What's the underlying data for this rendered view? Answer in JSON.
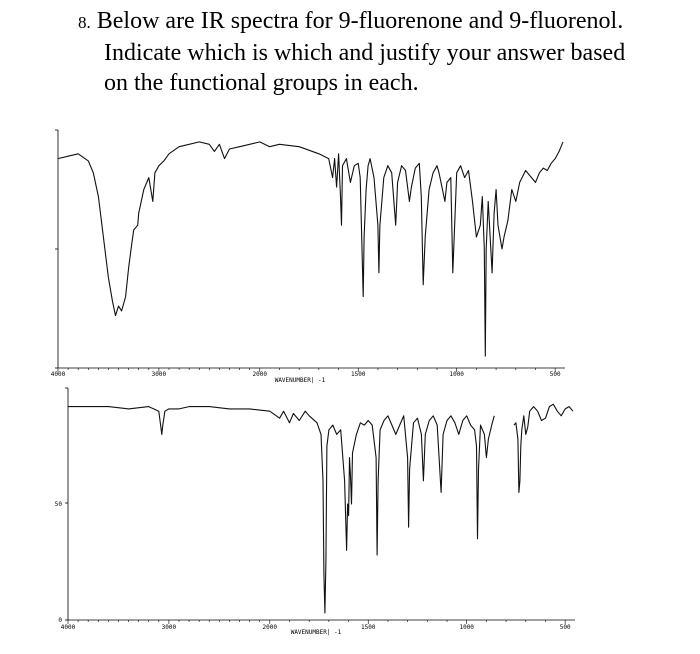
{
  "question": {
    "number": "8.",
    "line1": "Below are IR spectra for 9-fluorenone and 9-fluorenol.",
    "line2": "Indicate which is which and justify your answer based",
    "line3": "on the functional groups in each."
  },
  "chart_data": [
    {
      "type": "line",
      "title": "",
      "xlabel": "WAVENUMBER| -1",
      "ylabel": "",
      "xlim": [
        4000,
        450
      ],
      "ylim": [
        0,
        100
      ],
      "x_reversed": true,
      "xticks": [
        "4000",
        "3000",
        "2000",
        "1500",
        "1000",
        "500"
      ],
      "yticks": [],
      "series": [
        {
          "points": [
            [
              4000,
              88
            ],
            [
              3900,
              89
            ],
            [
              3800,
              90
            ],
            [
              3700,
              87
            ],
            [
              3650,
              82
            ],
            [
              3600,
              72
            ],
            [
              3550,
              55
            ],
            [
              3500,
              38
            ],
            [
              3460,
              28
            ],
            [
              3430,
              22
            ],
            [
              3400,
              26
            ],
            [
              3370,
              24
            ],
            [
              3330,
              30
            ],
            [
              3300,
              42
            ],
            [
              3270,
              52
            ],
            [
              3250,
              58
            ],
            [
              3210,
              60
            ],
            [
              3200,
              65
            ],
            [
              3150,
              75
            ],
            [
              3100,
              80
            ],
            [
              3060,
              70
            ],
            [
              3040,
              82
            ],
            [
              3000,
              85
            ],
            [
              2950,
              87
            ],
            [
              2900,
              90
            ],
            [
              2800,
              93
            ],
            [
              2700,
              94
            ],
            [
              2600,
              95
            ],
            [
              2500,
              94
            ],
            [
              2450,
              91
            ],
            [
              2400,
              94
            ],
            [
              2350,
              88
            ],
            [
              2300,
              92
            ],
            [
              2200,
              93
            ],
            [
              2100,
              94
            ],
            [
              2000,
              95
            ],
            [
              1950,
              93
            ],
            [
              1900,
              94
            ],
            [
              1800,
              93
            ],
            [
              1700,
              90
            ],
            [
              1650,
              88
            ],
            [
              1630,
              80
            ],
            [
              1620,
              88
            ],
            [
              1610,
              76
            ],
            [
              1600,
              90
            ],
            [
              1590,
              72
            ],
            [
              1585,
              60
            ],
            [
              1580,
              85
            ],
            [
              1560,
              88
            ],
            [
              1540,
              78
            ],
            [
              1520,
              85
            ],
            [
              1500,
              86
            ],
            [
              1490,
              80
            ],
            [
              1475,
              30
            ],
            [
              1470,
              55
            ],
            [
              1460,
              75
            ],
            [
              1450,
              85
            ],
            [
              1440,
              88
            ],
            [
              1420,
              80
            ],
            [
              1400,
              60
            ],
            [
              1395,
              40
            ],
            [
              1390,
              60
            ],
            [
              1370,
              80
            ],
            [
              1350,
              85
            ],
            [
              1330,
              82
            ],
            [
              1310,
              60
            ],
            [
              1300,
              78
            ],
            [
              1280,
              85
            ],
            [
              1260,
              83
            ],
            [
              1240,
              70
            ],
            [
              1230,
              76
            ],
            [
              1210,
              84
            ],
            [
              1190,
              86
            ],
            [
              1180,
              72
            ],
            [
              1170,
              35
            ],
            [
              1160,
              55
            ],
            [
              1140,
              75
            ],
            [
              1120,
              82
            ],
            [
              1100,
              85
            ],
            [
              1090,
              82
            ],
            [
              1060,
              70
            ],
            [
              1050,
              78
            ],
            [
              1030,
              80
            ],
            [
              1020,
              40
            ],
            [
              1000,
              82
            ],
            [
              980,
              85
            ],
            [
              960,
              80
            ],
            [
              940,
              83
            ],
            [
              920,
              70
            ],
            [
              900,
              55
            ],
            [
              880,
              60
            ],
            [
              870,
              72
            ],
            [
              860,
              50
            ],
            [
              855,
              5
            ],
            [
              850,
              50
            ],
            [
              840,
              70
            ],
            [
              820,
              40
            ],
            [
              810,
              65
            ],
            [
              800,
              75
            ],
            [
              790,
              60
            ],
            [
              770,
              50
            ],
            [
              760,
              55
            ],
            [
              740,
              62
            ],
            [
              720,
              75
            ],
            [
              700,
              70
            ],
            [
              680,
              78
            ],
            [
              650,
              83
            ],
            [
              620,
              80
            ],
            [
              600,
              78
            ],
            [
              580,
              82
            ],
            [
              560,
              84
            ],
            [
              540,
              83
            ],
            [
              520,
              86
            ],
            [
              500,
              88
            ],
            [
              480,
              91
            ],
            [
              460,
              95
            ]
          ]
        }
      ]
    },
    {
      "type": "line",
      "title": "",
      "xlabel": "WAVENUMBER| -1",
      "ylabel": "",
      "xlim": [
        4000,
        450
      ],
      "ylim": [
        0,
        100
      ],
      "x_reversed": true,
      "xticks": [
        "4000",
        "3000",
        "2000",
        "1500",
        "1000",
        "500"
      ],
      "yticks": [
        "0",
        "50"
      ],
      "series": [
        {
          "points": [
            [
              4000,
              92
            ],
            [
              3800,
              92
            ],
            [
              3600,
              92
            ],
            [
              3400,
              91
            ],
            [
              3200,
              92
            ],
            [
              3100,
              90
            ],
            [
              3070,
              80
            ],
            [
              3060,
              84
            ],
            [
              3040,
              90
            ],
            [
              3000,
              91
            ],
            [
              2900,
              91
            ],
            [
              2800,
              92
            ],
            [
              2600,
              92
            ],
            [
              2400,
              91
            ],
            [
              2200,
              91
            ],
            [
              2000,
              90
            ],
            [
              1950,
              87
            ],
            [
              1930,
              90
            ],
            [
              1900,
              85
            ],
            [
              1880,
              89
            ],
            [
              1850,
              86
            ],
            [
              1820,
              90
            ],
            [
              1800,
              88
            ],
            [
              1760,
              85
            ],
            [
              1740,
              80
            ],
            [
              1730,
              60
            ],
            [
              1725,
              20
            ],
            [
              1720,
              3
            ],
            [
              1715,
              25
            ],
            [
              1710,
              75
            ],
            [
              1700,
              82
            ],
            [
              1680,
              84
            ],
            [
              1660,
              80
            ],
            [
              1640,
              82
            ],
            [
              1620,
              60
            ],
            [
              1610,
              30
            ],
            [
              1605,
              50
            ],
            [
              1600,
              45
            ],
            [
              1595,
              70
            ],
            [
              1590,
              62
            ],
            [
              1585,
              50
            ],
            [
              1580,
              72
            ],
            [
              1560,
              80
            ],
            [
              1540,
              85
            ],
            [
              1520,
              84
            ],
            [
              1500,
              86
            ],
            [
              1480,
              84
            ],
            [
              1460,
              70
            ],
            [
              1455,
              28
            ],
            [
              1450,
              60
            ],
            [
              1440,
              82
            ],
            [
              1420,
              86
            ],
            [
              1400,
              88
            ],
            [
              1380,
              84
            ],
            [
              1360,
              80
            ],
            [
              1340,
              84
            ],
            [
              1320,
              88
            ],
            [
              1300,
              70
            ],
            [
              1295,
              40
            ],
            [
              1290,
              65
            ],
            [
              1270,
              85
            ],
            [
              1250,
              87
            ],
            [
              1230,
              80
            ],
            [
              1220,
              60
            ],
            [
              1210,
              80
            ],
            [
              1190,
              86
            ],
            [
              1170,
              88
            ],
            [
              1150,
              84
            ],
            [
              1130,
              55
            ],
            [
              1120,
              80
            ],
            [
              1100,
              86
            ],
            [
              1080,
              88
            ],
            [
              1060,
              85
            ],
            [
              1040,
              80
            ],
            [
              1020,
              86
            ],
            [
              1000,
              88
            ],
            [
              980,
              84
            ],
            [
              960,
              82
            ],
            [
              950,
              75
            ],
            [
              945,
              35
            ],
            [
              940,
              65
            ],
            [
              930,
              84
            ],
            [
              910,
              80
            ],
            [
              900,
              70
            ],
            [
              890,
              78
            ],
            [
              870,
              85
            ],
            [
              860,
              88
            ]
          ]
        },
        {
          "points": [
            [
              760,
              84
            ],
            [
              750,
              85
            ],
            [
              740,
              78
            ],
            [
              735,
              55
            ],
            [
              730,
              60
            ],
            [
              725,
              75
            ],
            [
              720,
              82
            ],
            [
              710,
              88
            ],
            [
              700,
              80
            ],
            [
              690,
              83
            ],
            [
              680,
              90
            ],
            [
              660,
              92
            ],
            [
              640,
              90
            ],
            [
              620,
              86
            ],
            [
              600,
              87
            ],
            [
              580,
              92
            ],
            [
              560,
              93
            ],
            [
              540,
              90
            ],
            [
              520,
              88
            ],
            [
              500,
              91
            ],
            [
              480,
              92
            ],
            [
              460,
              90
            ]
          ]
        }
      ]
    }
  ]
}
